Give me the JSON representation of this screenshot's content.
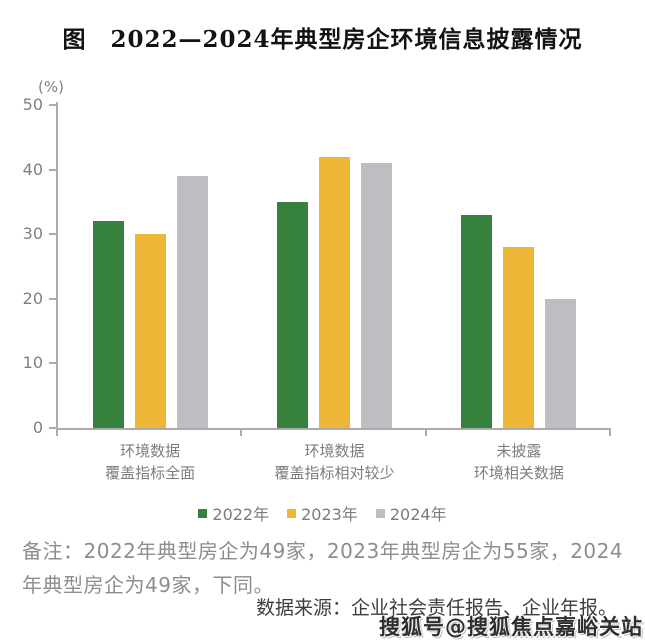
{
  "title": "图　2022—2024年典型房企环境信息披露情况",
  "chart_data": {
    "type": "bar",
    "title": "图　2022—2024年典型房企环境信息披露情况",
    "unit_label": "(%)",
    "categories": [
      [
        "环境数据",
        "覆盖指标全面"
      ],
      [
        "环境数据",
        "覆盖指标相对较少"
      ],
      [
        "未披露",
        "环境相关数据"
      ]
    ],
    "series": [
      {
        "name": "2022年",
        "color": "#37813F",
        "values": [
          32,
          35,
          33
        ]
      },
      {
        "name": "2023年",
        "color": "#EDB637",
        "values": [
          30,
          42,
          28
        ]
      },
      {
        "name": "2024年",
        "color": "#BDBEC1",
        "values": [
          39,
          41,
          20
        ]
      }
    ],
    "ylim": [
      0,
      50
    ],
    "yticks": [
      0,
      10,
      20,
      30,
      40,
      50
    ],
    "grid": false,
    "legend_position": "bottom"
  },
  "note": {
    "line1": "备注：2022年典型房企为49家，2023年典型房企为55家，2024",
    "line2": "年典型房企为49家，下同。"
  },
  "source": "数据来源：企业社会责任报告、企业年报。",
  "watermark": "搜狐号@搜狐焦点嘉峪关站"
}
